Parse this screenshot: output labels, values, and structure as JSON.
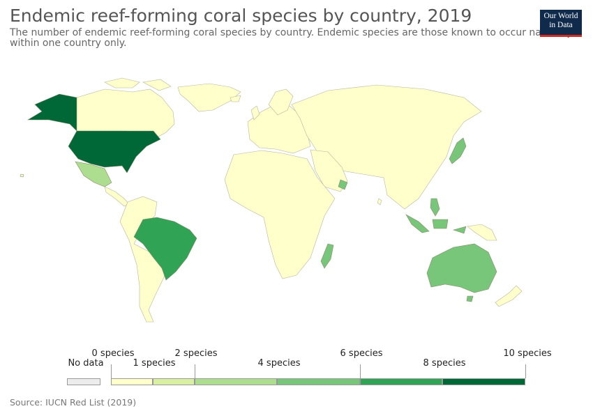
{
  "header": {
    "title": "Endemic reef-forming coral species by country, 2019",
    "subtitle": "The number of endemic reef-forming coral species by country. Endemic species are those known to occur naturally within one country only."
  },
  "logo": {
    "line1": "Our World",
    "line2": "in Data"
  },
  "legend": {
    "no_data": "No data",
    "ticks": [
      "0 species",
      "1 species",
      "2 species",
      "4 species",
      "6 species",
      "8 species",
      "10 species"
    ],
    "colors": {
      "no_data": "#ececec",
      "bin_0_1": "#ffffcc",
      "bin_1_2": "#d9f0a3",
      "bin_2_4": "#addd8e",
      "bin_4_6": "#78c679",
      "bin_6_8": "#31a354",
      "bin_8_10": "#006837"
    }
  },
  "map": {
    "unit": "species",
    "highlighted": [
      {
        "region": "United States",
        "value": "8-10"
      },
      {
        "region": "Alaska",
        "value": "8-10"
      },
      {
        "region": "Brazil",
        "value": "6-8"
      },
      {
        "region": "Australia",
        "value": "4-6"
      },
      {
        "region": "Mexico",
        "value": "2-4"
      },
      {
        "region": "Japan",
        "value": "4-6"
      },
      {
        "region": "Madagascar",
        "value": "4-6"
      },
      {
        "region": "Philippines",
        "value": "4-6"
      },
      {
        "region": "Indonesia",
        "value": "4-6"
      },
      {
        "region": "Oman",
        "value": "4-6"
      }
    ]
  },
  "source": "Source: IUCN Red List (2019)"
}
